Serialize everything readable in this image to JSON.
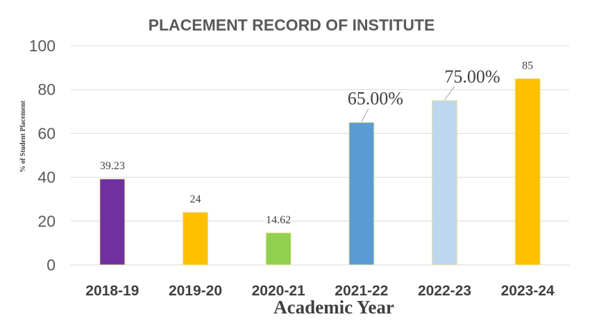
{
  "chart_data": {
    "type": "bar",
    "title": "PLACEMENT RECORD OF INSTITUTE",
    "xlabel": "Academic Year",
    "ylabel": "% of Student Placement",
    "ylim": [
      0,
      100
    ],
    "yticks": [
      0,
      20,
      40,
      60,
      80,
      100
    ],
    "grid": true,
    "categories": [
      "2018-19",
      "2019-20",
      "2020-21",
      "2021-22",
      "2022-23",
      "2023-24"
    ],
    "values": [
      39.23,
      24,
      14.62,
      65,
      75,
      85
    ],
    "data_labels": [
      "39.23",
      "24",
      "14.62",
      "65.00%",
      "75.00%",
      "85"
    ],
    "colors": [
      "#7030a0",
      "#ffc000",
      "#92d050",
      "#5b9bd5",
      "#bdd7ee",
      "#ffc000"
    ]
  }
}
